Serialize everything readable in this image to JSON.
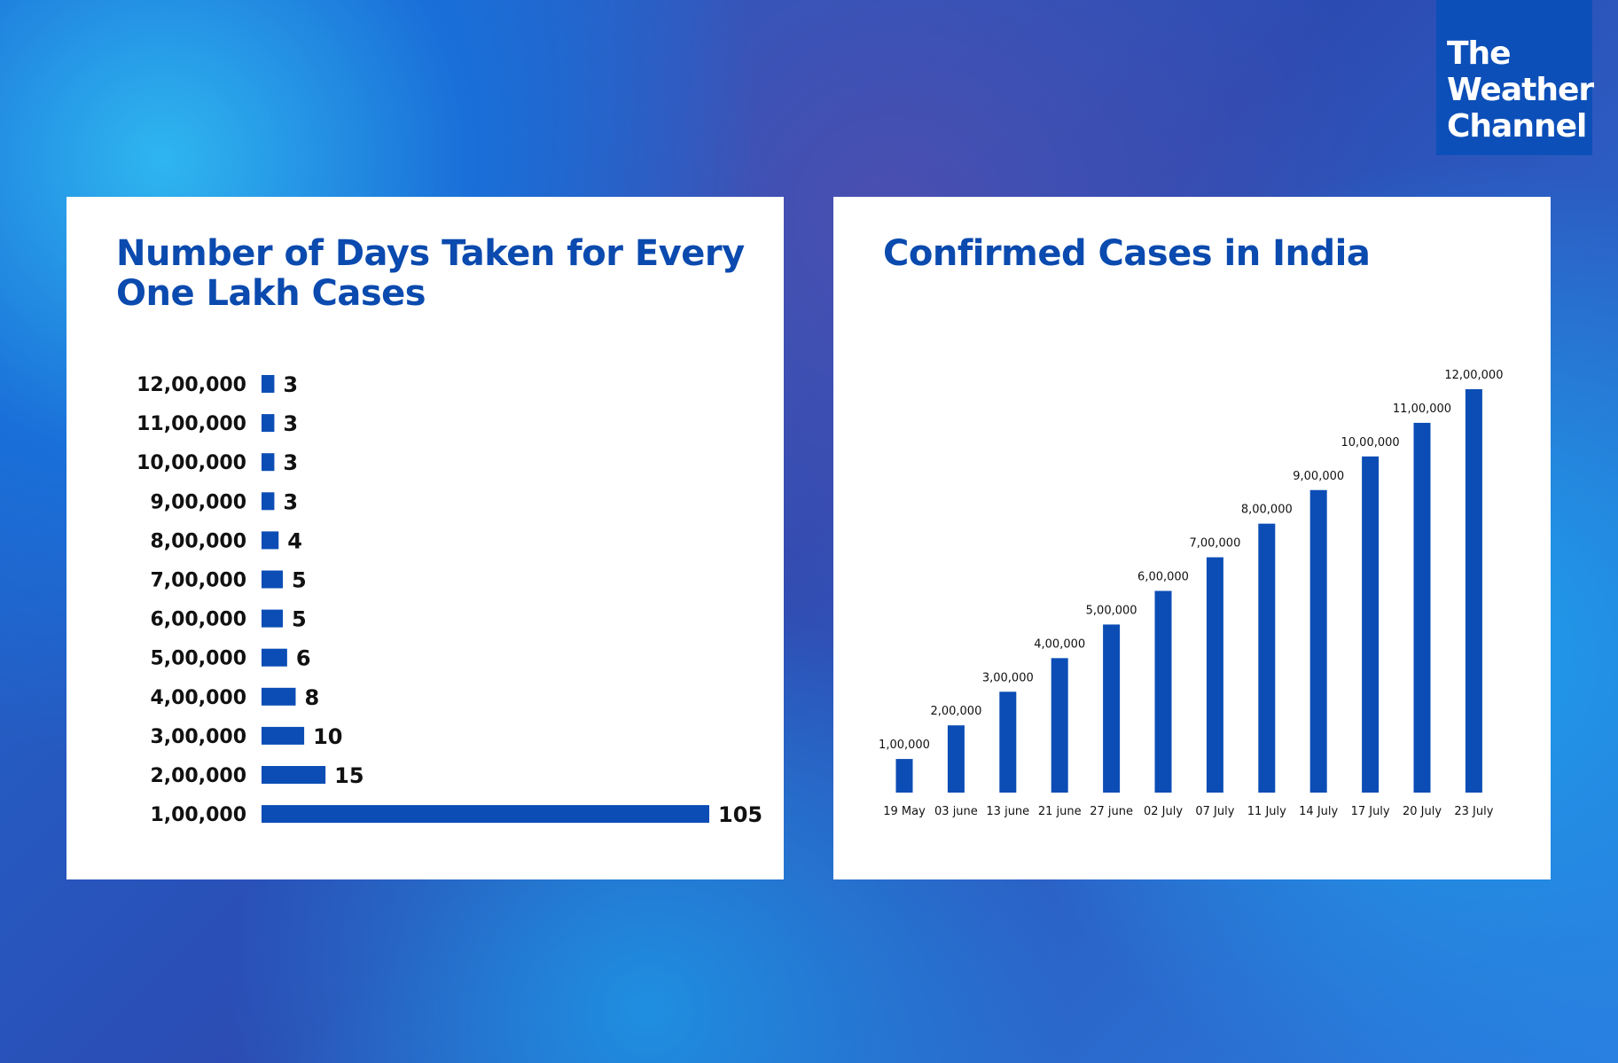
{
  "logo": {
    "text": "The Weather Channel",
    "lines": [
      "The",
      "Weather",
      "Channel"
    ]
  },
  "colors": {
    "bar": "#0b4db5",
    "title": "#0b4aae"
  },
  "chart_data": [
    {
      "type": "bar",
      "orientation": "horizontal",
      "title": "Number of Days Taken for Every One Lakh Cases",
      "title_lines": [
        "Number of Days Taken for Every",
        "One Lakh Cases"
      ],
      "categories": [
        "12,00,000",
        "11,00,000",
        "10,00,000",
        "9,00,000",
        "8,00,000",
        "7,00,000",
        "6,00,000",
        "5,00,000",
        "4,00,000",
        "3,00,000",
        "2,00,000",
        "1,00,000"
      ],
      "values": [
        3,
        3,
        3,
        3,
        4,
        5,
        5,
        6,
        8,
        10,
        15,
        105
      ],
      "xlabel": "",
      "ylabel": ""
    },
    {
      "type": "bar",
      "title": "Confirmed Cases in India",
      "categories": [
        "19 May",
        "03 june",
        "13 june",
        "21 june",
        "27 june",
        "02 July",
        "07 July",
        "11 July",
        "14 July",
        "17 July",
        "20 July",
        "23 July"
      ],
      "values": [
        100000,
        200000,
        300000,
        400000,
        500000,
        600000,
        700000,
        800000,
        900000,
        1000000,
        1100000,
        1200000
      ],
      "labels": [
        "1,00,000",
        "2,00,000",
        "3,00,000",
        "4,00,000",
        "5,00,000",
        "6,00,000",
        "7,00,000",
        "8,00,000",
        "9,00,000",
        "10,00,000",
        "11,00,000",
        "12,00,000"
      ],
      "xlabel": "",
      "ylabel": ""
    }
  ]
}
